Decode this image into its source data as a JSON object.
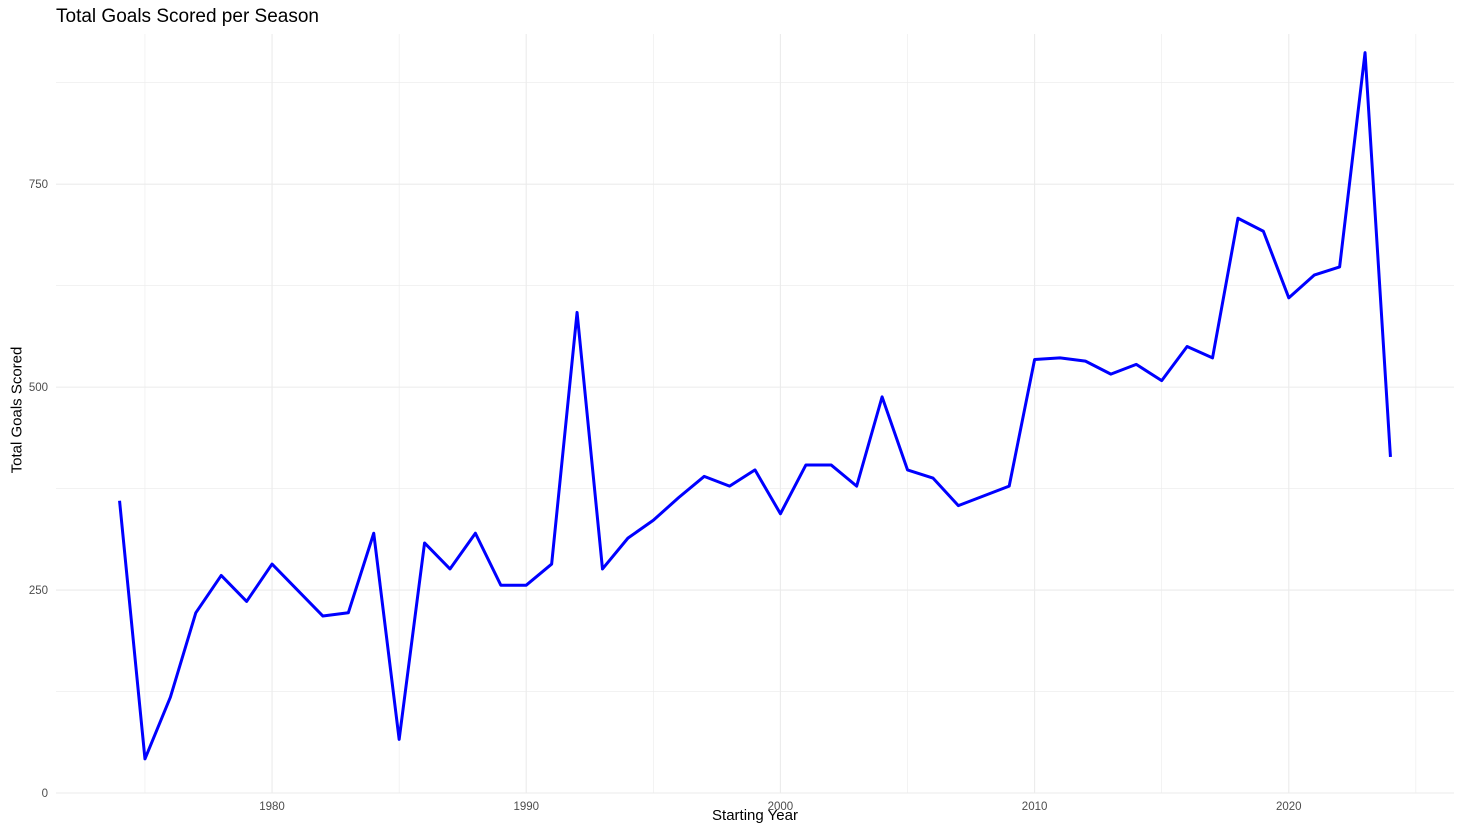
{
  "chart_data": {
    "type": "line",
    "title": "Total Goals Scored per Season",
    "xlabel": "Starting Year",
    "ylabel": "Total Goals Scored",
    "xlim": [
      1971.5,
      2026.5
    ],
    "ylim": [
      0,
      935
    ],
    "x_ticks": [
      1980,
      1990,
      2000,
      2010,
      2020
    ],
    "x_minor_ticks": [
      1975,
      1985,
      1995,
      2005,
      2015,
      2025
    ],
    "y_ticks": [
      0,
      250,
      500,
      750
    ],
    "y_minor_ticks": [
      125,
      375,
      625,
      875
    ],
    "grid": true,
    "legend": "none",
    "line_color": "#0000ff",
    "grid_color": "#ebebeb",
    "x": [
      1974,
      1975,
      1976,
      1977,
      1978,
      1979,
      1980,
      1981,
      1982,
      1983,
      1984,
      1985,
      1986,
      1987,
      1988,
      1989,
      1990,
      1991,
      1992,
      1993,
      1994,
      1995,
      1996,
      1997,
      1998,
      1999,
      2000,
      2001,
      2002,
      2003,
      2004,
      2005,
      2006,
      2007,
      2008,
      2009,
      2010,
      2011,
      2012,
      2013,
      2014,
      2015,
      2016,
      2017,
      2018,
      2019,
      2020,
      2021,
      2022,
      2023,
      2024
    ],
    "y": [
      360,
      42,
      118,
      222,
      268,
      236,
      282,
      250,
      218,
      222,
      320,
      66,
      308,
      276,
      320,
      256,
      256,
      282,
      592,
      276,
      314,
      336,
      364,
      390,
      378,
      398,
      344,
      404,
      404,
      378,
      488,
      398,
      388,
      354,
      366,
      378,
      534,
      536,
      532,
      516,
      528,
      508,
      550,
      536,
      708,
      692,
      610,
      638,
      648,
      912,
      414
    ]
  }
}
